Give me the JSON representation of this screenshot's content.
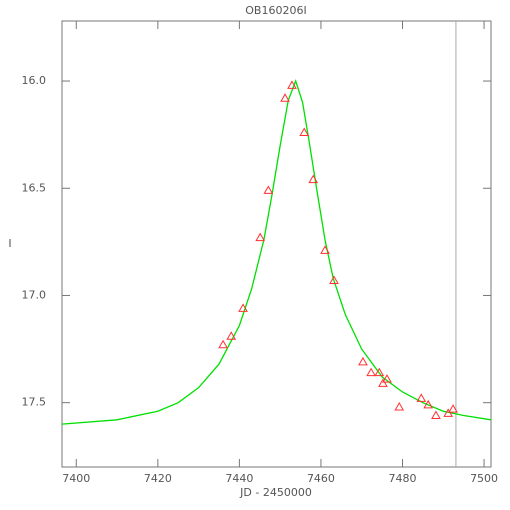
{
  "chart_data": {
    "type": "scatter",
    "title": "OB160206I",
    "x_label": "JD - 2450000",
    "y_label": "I",
    "xlim": [
      7396.5,
      7501.7
    ],
    "ylim": [
      17.8,
      15.72
    ],
    "xticks": [
      7400,
      7420,
      7440,
      7460,
      7480,
      7500
    ],
    "yticks": [
      {
        "value": 16,
        "label": "16.0"
      },
      16.5,
      {
        "value": 17,
        "label": "17.0"
      },
      17.5
    ],
    "points": {
      "color": "#ff3030",
      "x": [
        7436.0,
        7438.0,
        7440.9,
        7445.1,
        7447.1,
        7451.2,
        7452.9,
        7455.9,
        7458.1,
        7461.0,
        7463.2,
        7470.3,
        7472.3,
        7474.3,
        7475.2,
        7476.2,
        7479.2,
        7484.6,
        7486.3,
        7488.2,
        7491.2,
        7492.4
      ],
      "y": [
        17.23,
        17.19,
        17.06,
        16.73,
        16.51,
        16.08,
        16.02,
        16.24,
        16.46,
        16.79,
        16.93,
        17.31,
        17.36,
        17.36,
        17.41,
        17.39,
        17.52,
        17.48,
        17.51,
        17.56,
        17.55,
        17.53
      ]
    },
    "fit": {
      "color": "#00e000",
      "x": [
        7396.5,
        7410,
        7420,
        7425,
        7430,
        7435,
        7440,
        7443,
        7446,
        7448,
        7450,
        7452,
        7453.8,
        7455.5,
        7457,
        7459,
        7461,
        7463,
        7466,
        7470,
        7475,
        7480,
        7485,
        7490,
        7495,
        7501.7
      ],
      "y": [
        17.6,
        17.58,
        17.54,
        17.5,
        17.43,
        17.32,
        17.14,
        16.97,
        16.74,
        16.53,
        16.3,
        16.09,
        16.0,
        16.1,
        16.27,
        16.51,
        16.74,
        16.92,
        17.09,
        17.25,
        17.38,
        17.45,
        17.5,
        17.54,
        17.56,
        17.58
      ]
    },
    "vline": {
      "x": 7493.1,
      "color": "#aaaaaa"
    }
  }
}
